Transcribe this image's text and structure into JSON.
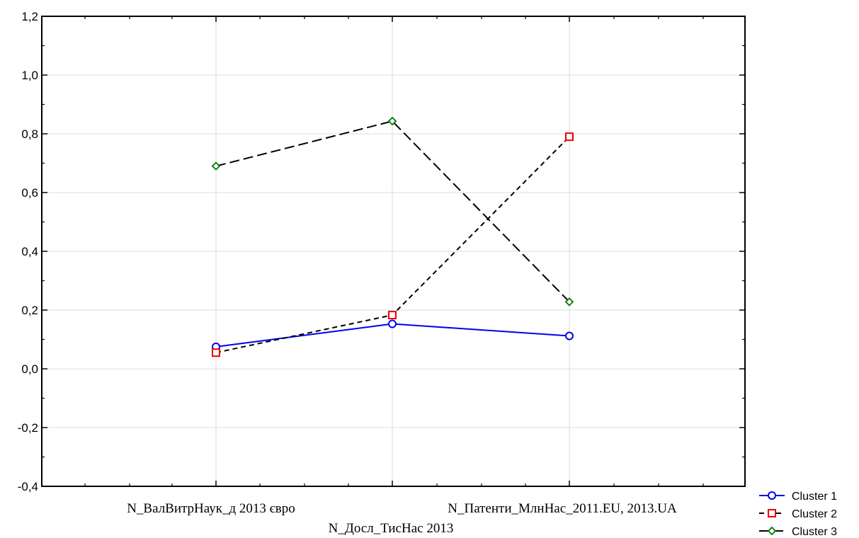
{
  "chart_data": {
    "type": "line",
    "categories": [
      "N_ВалВитрНаук_д 2013 євро",
      "N_Досл_ТисНас 2013",
      "N_Патенти_МлнНас_2011.EU, 2013.UA"
    ],
    "ylim": [
      -0.4,
      1.2
    ],
    "yticks": [
      "-0,4",
      "-0,2",
      "0,0",
      "0,2",
      "0,4",
      "0,6",
      "0,8",
      "1,0",
      "1,2"
    ],
    "grid": true,
    "legend_position": "bottom-right",
    "series": [
      {
        "name": "Cluster  1",
        "values": [
          0.075,
          0.153,
          0.112
        ],
        "color": "#0000ee",
        "marker": "circle",
        "dash": "solid"
      },
      {
        "name": "Cluster  2",
        "values": [
          0.055,
          0.183,
          0.79
        ],
        "color": "#000000",
        "marker_color": "#ee0000",
        "marker": "square",
        "dash": "short"
      },
      {
        "name": "Cluster  3",
        "values": [
          0.69,
          0.843,
          0.228
        ],
        "color": "#000000",
        "marker_color": "#007700",
        "marker": "diamond",
        "dash": "long"
      }
    ]
  }
}
